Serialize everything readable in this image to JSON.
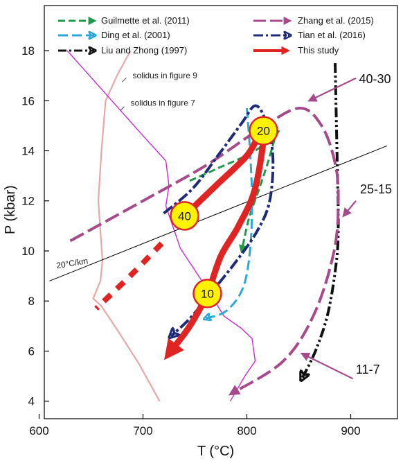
{
  "chart_data": {
    "type": "line",
    "xlabel": "T (°C)",
    "ylabel": "P (kbar)",
    "xlim": [
      605,
      945
    ],
    "ylim": [
      3.3,
      19.8
    ],
    "xticks": [
      "600",
      "700",
      "800",
      "900"
    ],
    "yticks": [
      "4",
      "6",
      "8",
      "10",
      "12",
      "14",
      "16",
      "18"
    ],
    "legend": [
      {
        "name": "Guilmette et al. (2011)",
        "color": "#1e9a4a"
      },
      {
        "name": "Ding et al. (2001)",
        "color": "#2aa8d8"
      },
      {
        "name": "Liu and Zhong (1997)",
        "color": "#111111"
      },
      {
        "name": "Zhang et al. (2015)",
        "color": "#a64a8c"
      },
      {
        "name": "Tian et al. (2016)",
        "color": "#1f2a78"
      },
      {
        "name": "This study",
        "color": "#e02424"
      }
    ],
    "series": [
      {
        "name": "Guilmette et al. (2011)",
        "color": "#1e9a4a",
        "dash": "10,5",
        "width": 3,
        "x": [
          745,
          772,
          808,
          830,
          827,
          820,
          812,
          802,
          795
        ],
        "y": [
          12.8,
          13.3,
          14.0,
          14.8,
          14.5,
          13.5,
          12.5,
          11.3,
          10.0
        ]
      },
      {
        "name": "Ding et al. (2001)",
        "color": "#2aa8d8",
        "dash": "14,6",
        "width": 3,
        "x": [
          800,
          803,
          805,
          803,
          796,
          780,
          760
        ],
        "y": [
          15.7,
          14.0,
          12.0,
          10.0,
          8.5,
          7.6,
          7.3
        ]
      },
      {
        "name": "Liu and Zhong (1997)",
        "color": "#111111",
        "dash": "14,4,3,4,3,4",
        "width": 4,
        "x": [
          885,
          886,
          887,
          888,
          886,
          878,
          866,
          853
        ],
        "y": [
          17.5,
          15.5,
          13.5,
          11.0,
          9.5,
          7.5,
          6.0,
          4.9
        ]
      },
      {
        "name": "Zhang et al. (2015)",
        "color": "#a64a8c",
        "dash": "22,7",
        "width": 4,
        "x": [
          630,
          700,
          760,
          810,
          850,
          872,
          885,
          888,
          884,
          865,
          835,
          785
        ],
        "y": [
          10.4,
          12.0,
          13.4,
          14.8,
          15.7,
          15.0,
          13.5,
          12.0,
          10.0,
          7.5,
          5.6,
          4.3
        ]
      },
      {
        "name": "Tian et al. (2016)",
        "color": "#1f2a78",
        "dash": "16,4,4,4",
        "width": 4,
        "x": [
          720,
          748,
          772,
          795,
          808,
          818,
          825,
          822,
          810,
          790,
          765,
          745,
          727
        ],
        "y": [
          11.5,
          12.5,
          13.8,
          15.1,
          15.8,
          15.2,
          13.8,
          12.0,
          10.8,
          9.6,
          8.3,
          7.3,
          6.6
        ]
      }
    ],
    "this_study": {
      "name": "This study",
      "color": "#e02424",
      "path_x": [
        740,
        770,
        800,
        816,
        808,
        792,
        775,
        762,
        745,
        725
      ],
      "path_y": [
        11.4,
        12.6,
        13.8,
        14.8,
        12.5,
        11.0,
        9.8,
        8.3,
        7.0,
        5.9
      ],
      "dashed_x": [
        718,
        690,
        655
      ],
      "dashed_y": [
        10.3,
        9.1,
        7.7
      ],
      "markers": [
        {
          "label": "20",
          "x": 816,
          "y": 14.8
        },
        {
          "label": "40",
          "x": 740,
          "y": 11.4
        },
        {
          "label": "10",
          "x": 762,
          "y": 8.3
        }
      ]
    },
    "reference_lines": [
      {
        "name": "solidus in figure 9",
        "color": "#e8a7a8",
        "x": [
          688,
          675,
          664,
          660,
          657,
          661,
          659,
          652,
          660,
          676,
          696,
          716
        ],
        "y": [
          18.0,
          17.0,
          16.0,
          14.0,
          12.0,
          9.6,
          8.8,
          8.1,
          7.8,
          6.8,
          5.5,
          4.0
        ]
      },
      {
        "name": "solidus in figure 7",
        "color": "#c92bd6",
        "x": [
          627,
          670,
          700,
          722,
          725,
          722,
          736,
          760,
          778,
          795,
          805,
          808,
          798,
          784
        ],
        "y": [
          18.0,
          16.0,
          14.6,
          13.6,
          12.6,
          11.8,
          10.1,
          8.6,
          7.4,
          6.9,
          6.5,
          5.6,
          5.0,
          4.0
        ]
      },
      {
        "name": "20°C/km",
        "color": "#000000",
        "x": [
          610,
          935
        ],
        "y": [
          8.8,
          14.2
        ]
      }
    ],
    "annotations": [
      {
        "text": "solidus in figure 9",
        "x": 690,
        "y": 16.9
      },
      {
        "text": "solidus in figure 7",
        "x": 688,
        "y": 15.8
      },
      {
        "text": "20°C/km",
        "x": 617,
        "y": 9.3
      },
      {
        "text": "40-30",
        "x": 908,
        "y": 16.7
      },
      {
        "text": "25-15",
        "x": 909,
        "y": 12.3
      },
      {
        "text": "11-7",
        "x": 905,
        "y": 5.1
      }
    ],
    "stage_arrows": [
      {
        "x1": 905,
        "y1": 16.9,
        "x2": 860,
        "y2": 16.0
      },
      {
        "x1": 905,
        "y1": 12.0,
        "x2": 893,
        "y2": 11.4
      },
      {
        "x1": 902,
        "y1": 4.9,
        "x2": 853,
        "y2": 5.9
      }
    ]
  }
}
